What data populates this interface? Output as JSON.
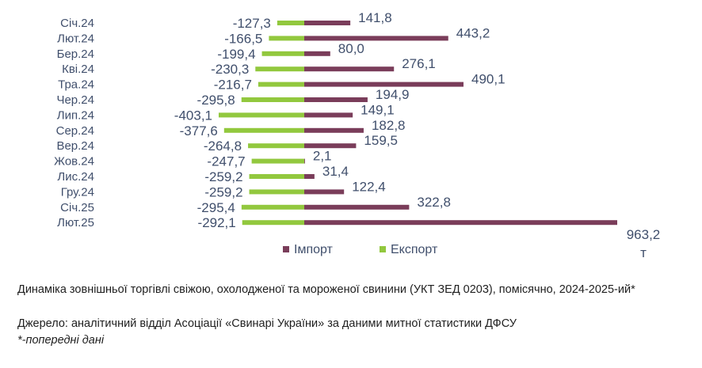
{
  "chart_data": {
    "type": "bar",
    "orientation": "horizontal",
    "categories": [
      "Січ.24",
      "Лют.24",
      "Бер.24",
      "Кві.24",
      "Тра.24",
      "Чер.24",
      "Лип.24",
      "Сер.24",
      "Вер.24",
      "Жов.24",
      "Лис.24",
      "Гру.24",
      "Січ.25",
      "Лют.25"
    ],
    "series": [
      {
        "name": "Імпорт",
        "color": "#7a3d5a",
        "values": [
          141.8,
          443.2,
          80.0,
          276.1,
          490.1,
          194.9,
          149.1,
          182.8,
          159.5,
          2.1,
          31.4,
          122.4,
          322.8,
          963.2
        ],
        "labels": [
          "141,8",
          "443,2",
          "80,0",
          "276,1",
          "490,1",
          "194,9",
          "149,1",
          "182,8",
          "159,5",
          "2,1",
          "31,4",
          "122,4",
          "322,8",
          "963,2"
        ]
      },
      {
        "name": "Експорт",
        "color": "#92c83e",
        "values": [
          -127.3,
          -166.5,
          -199.4,
          -230.3,
          -216.7,
          -295.8,
          -403.1,
          -377.6,
          -264.8,
          -247.7,
          -259.2,
          -259.2,
          -295.4,
          -292.1
        ],
        "labels": [
          "-127,3",
          "-166,5",
          "-199,4",
          "-230,3",
          "-216,7",
          "-295,8",
          "-403,1",
          "-377,6",
          "-264,8",
          "-247,7",
          "-259,2",
          "-259,2",
          "-295,4",
          "-292,1"
        ]
      }
    ],
    "unit": "т",
    "legend": "bottom"
  },
  "caption": {
    "line1": "Динаміка зовнішньої торгівлі свіжою, охолодженої та мороженої свинини (УКТ ЗЕД 0203), помісячно, 2024-2025-ий*",
    "line2": "Джерело: аналітичний відділ Асоціації «Свинарі України» за даними митної статистики ДФСУ",
    "line3": "*-попередні дані"
  }
}
